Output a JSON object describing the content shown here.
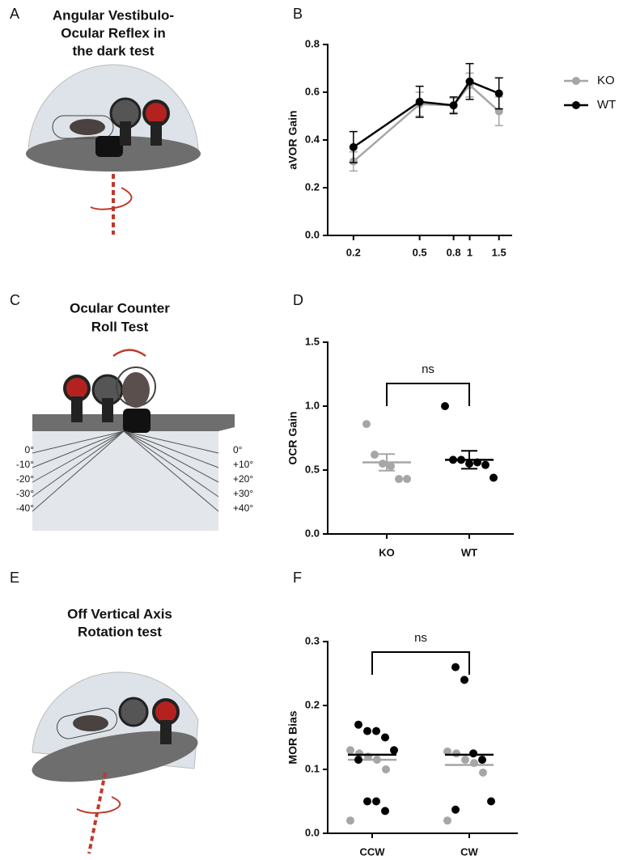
{
  "panel_labels": [
    "A",
    "B",
    "C",
    "D",
    "E",
    "F"
  ],
  "illustrations": [
    {
      "title_lines": [
        "Angular Vestibulo-",
        "Ocular Reflex in",
        "the dark test"
      ]
    },
    {
      "title_lines": [
        "Ocular Counter",
        "Roll Test"
      ],
      "left_angles": [
        "0°",
        "-10°",
        "-20°",
        "-30°",
        "-40°"
      ],
      "right_angles": [
        "0°",
        "+10°",
        "+20°",
        "+30°",
        "+40°"
      ]
    },
    {
      "title_lines": [
        "Off Vertical Axis",
        "Rotation test"
      ]
    }
  ],
  "chart_data": [
    {
      "type": "line",
      "ylabel": "aVOR Gain",
      "x": [
        0.2,
        0.5,
        0.8,
        1,
        1.5
      ],
      "xlog": true,
      "xlim": [
        0.14,
        1.8
      ],
      "xticks": [
        0.2,
        0.5,
        0.8,
        1,
        1.5
      ],
      "ylim": [
        0,
        0.8
      ],
      "yticks": [
        {
          "value": 0,
          "label": "0.0"
        },
        {
          "value": 0.2,
          "label": "0.2"
        },
        {
          "value": 0.4,
          "label": "0.4"
        },
        {
          "value": 0.6,
          "label": "0.6"
        },
        {
          "value": 0.8,
          "label": "0.8"
        }
      ],
      "legend": "outside-right",
      "series": [
        {
          "name": "KO",
          "color": "#a6a6a6",
          "values": [
            0.31,
            0.55,
            0.545,
            0.63,
            0.52
          ],
          "errors": [
            0.04,
            0.05,
            0.03,
            0.05,
            0.06
          ]
        },
        {
          "name": "WT",
          "color": "#000000",
          "values": [
            0.37,
            0.56,
            0.545,
            0.645,
            0.595
          ],
          "errors": [
            0.065,
            0.065,
            0.035,
            0.075,
            0.065
          ]
        }
      ]
    },
    {
      "type": "strip",
      "ylabel": "OCR Gain",
      "categories": [
        "KO",
        "WT"
      ],
      "annotation": "ns",
      "ylim": [
        0,
        1.5
      ],
      "yticks": [
        {
          "value": 0,
          "label": "0.0"
        },
        {
          "value": 0.5,
          "label": "0.5"
        },
        {
          "value": 1,
          "label": "1.0"
        },
        {
          "value": 1.5,
          "label": "1.5"
        }
      ],
      "series": [
        {
          "colors": [
            "#a6a6a6",
            "#000000"
          ],
          "values": [
            [
              0.86,
              0.62,
              0.55,
              0.53,
              0.43,
              0.43
            ],
            [
              1.0,
              0.58,
              0.58,
              0.55,
              0.56,
              0.54,
              0.44
            ]
          ],
          "mean": [
            0.56,
            0.58
          ],
          "sem": [
            0.065,
            0.07
          ]
        }
      ]
    },
    {
      "type": "strip",
      "ylabel": "MOR Bias",
      "categories": [
        "CCW",
        "CW"
      ],
      "annotation": "ns",
      "ylim": [
        0,
        0.3
      ],
      "yticks": [
        {
          "value": 0,
          "label": "0.0"
        },
        {
          "value": 0.1,
          "label": "0.1"
        },
        {
          "value": 0.2,
          "label": "0.2"
        },
        {
          "value": 0.3,
          "label": "0.3"
        }
      ],
      "series": [
        {
          "color": "#a6a6a6",
          "values": [
            [
              0.13,
              0.125,
              0.12,
              0.115,
              0.1,
              0.02
            ],
            [
              0.128,
              0.125,
              0.115,
              0.11,
              0.095,
              0.02
            ]
          ],
          "mean": [
            0.115,
            0.107
          ]
        },
        {
          "color": "#000000",
          "values": [
            [
              0.17,
              0.16,
              0.16,
              0.15,
              0.13,
              0.115,
              0.05,
              0.05,
              0.035
            ],
            [
              0.26,
              0.24,
              0.125,
              0.115,
              0.05,
              0.037
            ]
          ],
          "mean": [
            0.123,
            0.123
          ]
        }
      ]
    }
  ]
}
